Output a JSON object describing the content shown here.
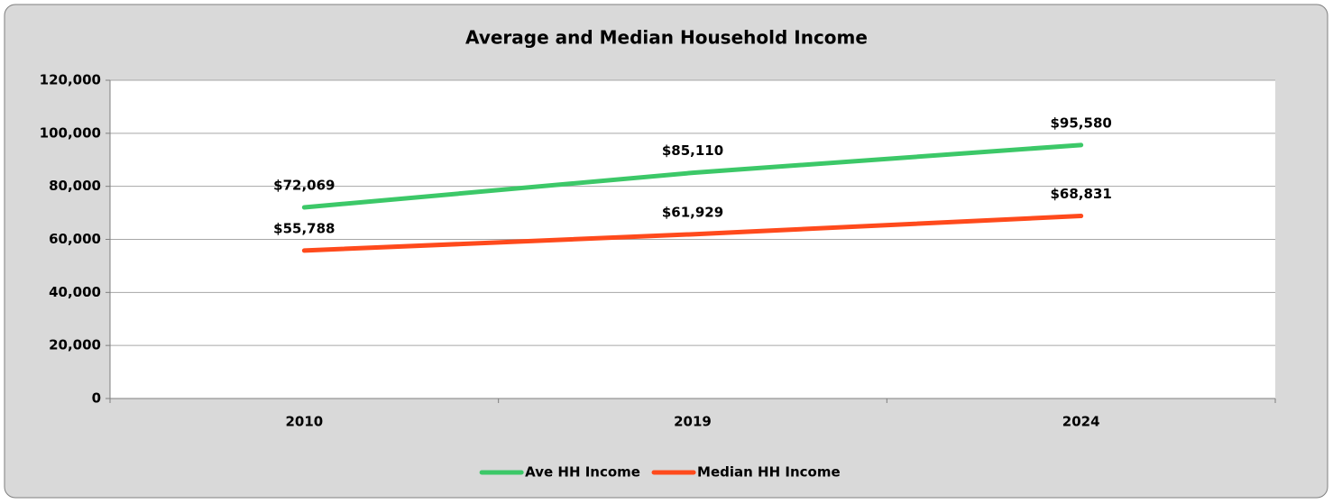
{
  "chart_data": {
    "type": "line",
    "title": "Average and Median Household Income",
    "categories": [
      "2010",
      "2019",
      "2024"
    ],
    "series": [
      {
        "name": "Ave HH Income",
        "color": "#3cc868",
        "values": [
          72069,
          85110,
          95580
        ],
        "value_labels": [
          "$72,069",
          "$85,110",
          "$95,580"
        ]
      },
      {
        "name": "Median HH Income",
        "color": "#ff4a1c",
        "values": [
          55788,
          61929,
          68831
        ],
        "value_labels": [
          "$55,788",
          "$61,929",
          "$68,831"
        ]
      }
    ],
    "ylim": [
      0,
      120000
    ],
    "yticks": [
      0,
      {
        "value": 20000,
        "label": "20,000"
      },
      {
        "value": 40000,
        "label": "40,000"
      },
      {
        "value": 60000,
        "label": "60,000"
      },
      {
        "value": 80000,
        "label": "80,000"
      },
      {
        "value": 100000,
        "label": "100,000"
      },
      {
        "value": 120000,
        "label": "120,000"
      }
    ],
    "grid": true,
    "legend": "bottom"
  }
}
